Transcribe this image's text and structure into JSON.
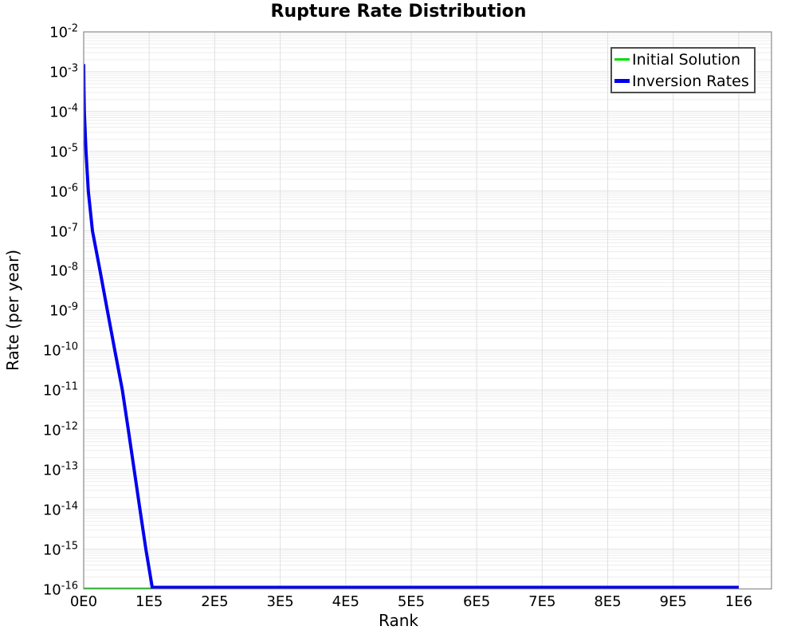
{
  "chart_data": {
    "type": "line",
    "title": "Rupture Rate Distribution",
    "xlabel": "Rank",
    "ylabel": "Rate (per year)",
    "x_axis": {
      "min": 0,
      "max": 1050000,
      "tick_values": [
        0,
        100000,
        200000,
        300000,
        400000,
        500000,
        600000,
        700000,
        800000,
        900000,
        1000000
      ],
      "tick_labels": [
        "0E0",
        "1E5",
        "2E5",
        "3E5",
        "4E5",
        "5E5",
        "6E5",
        "7E5",
        "8E5",
        "9E5",
        "1E6"
      ]
    },
    "y_axis": {
      "scale": "log",
      "min": 1e-16,
      "max": 0.01,
      "tick_exponents": [
        -2,
        -3,
        -4,
        -5,
        -6,
        -7,
        -8,
        -9,
        -10,
        -11,
        -12,
        -13,
        -14,
        -15,
        -16
      ]
    },
    "grid": {
      "vertical_major": true,
      "horizontal_log_minor": true
    },
    "legend": {
      "position": "top-right"
    },
    "series": [
      {
        "name": "Initial Solution",
        "color": "#00DC00",
        "line_width": 1.8,
        "points": [
          [
            0,
            1e-16
          ],
          [
            1000000,
            1e-16
          ]
        ]
      },
      {
        "name": "Inversion Rates",
        "color": "#0000EE",
        "line_width": 4,
        "points": [
          [
            0,
            0.00155
          ],
          [
            400,
            0.0004
          ],
          [
            1000,
            0.0001
          ],
          [
            3500,
            1e-05
          ],
          [
            7000,
            1e-06
          ],
          [
            13400,
            1e-07
          ],
          [
            24900,
            1e-08
          ],
          [
            36100,
            1e-09
          ],
          [
            47400,
            1e-10
          ],
          [
            59000,
            1e-11
          ],
          [
            68100,
            1e-12
          ],
          [
            77000,
            1e-13
          ],
          [
            85900,
            1e-14
          ],
          [
            94900,
            1e-15
          ],
          [
            104600,
            1e-16
          ],
          [
            1000000,
            1e-16
          ]
        ]
      }
    ],
    "colors": {
      "grid_minor": "#EDEDED",
      "grid_major": "#E0E0E0",
      "plot_border": "#8A8A8A",
      "text": "#000000",
      "legend_border": "#4D4D4D",
      "background": "#FFFFFF"
    }
  }
}
